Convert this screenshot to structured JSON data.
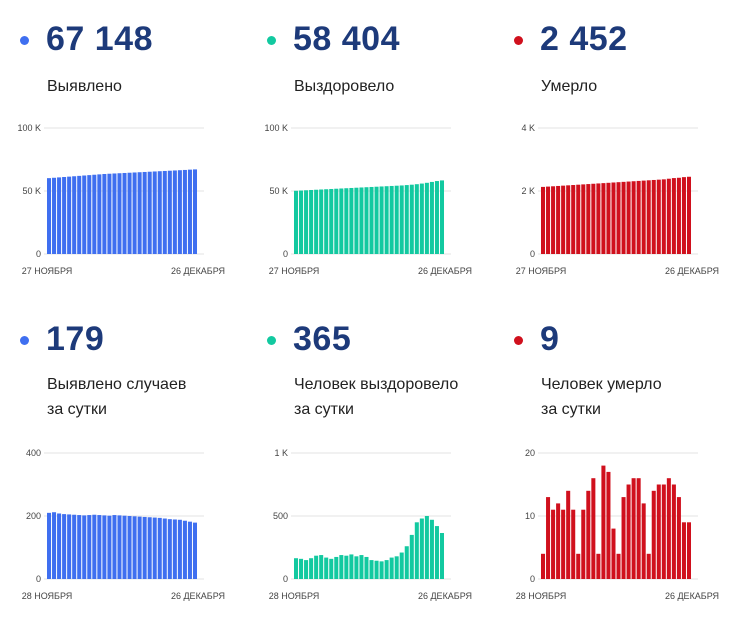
{
  "colors": {
    "blue": "#3f6ff0",
    "green": "#12c9a0",
    "red": "#d0101d",
    "number": "#1d3a7a"
  },
  "panels": [
    {
      "number": "67 148",
      "label1": "Выявлено",
      "label2": "",
      "color": "#3f6ff0"
    },
    {
      "number": "58 404",
      "label1": "Выздоровело",
      "label2": "",
      "color": "#12c9a0"
    },
    {
      "number": "2 452",
      "label1": "Умерло",
      "label2": "",
      "color": "#d0101d"
    },
    {
      "number": "179",
      "label1": "Выявлено случаев",
      "label2": "за сутки",
      "color": "#3f6ff0"
    },
    {
      "number": "365",
      "label1": "Человек выздоровело",
      "label2": "за сутки",
      "color": "#12c9a0"
    },
    {
      "number": "9",
      "label1": "Человек умерло",
      "label2": "за сутки",
      "color": "#d0101d"
    }
  ],
  "chart_data": [
    {
      "type": "bar",
      "color": "#3f6ff0",
      "ylim": [
        0,
        100000
      ],
      "yticks": [
        {
          "v": 0,
          "label": "0"
        },
        {
          "v": 50000,
          "label": "50 K"
        },
        {
          "v": 100000,
          "label": "100 K"
        }
      ],
      "x_start_label": "27 НОЯБРЯ",
      "x_end_label": "26 ДЕКАБРЯ",
      "values": [
        60200,
        60500,
        60800,
        61100,
        61400,
        61700,
        62000,
        62300,
        62600,
        62900,
        63200,
        63500,
        63700,
        63900,
        64100,
        64300,
        64500,
        64700,
        64900,
        65100,
        65300,
        65500,
        65700,
        65900,
        66100,
        66300,
        66500,
        66700,
        66950,
        67148
      ]
    },
    {
      "type": "bar",
      "color": "#12c9a0",
      "ylim": [
        0,
        100000
      ],
      "yticks": [
        {
          "v": 0,
          "label": "0"
        },
        {
          "v": 50000,
          "label": "50 K"
        },
        {
          "v": 100000,
          "label": "100 K"
        }
      ],
      "x_start_label": "27 НОЯБРЯ",
      "x_end_label": "26 ДЕКАБРЯ",
      "values": [
        50200,
        50400,
        50600,
        50800,
        51000,
        51200,
        51400,
        51600,
        51800,
        52000,
        52200,
        52400,
        52600,
        52800,
        53000,
        53200,
        53400,
        53600,
        53800,
        54000,
        54200,
        54400,
        54700,
        55000,
        55400,
        55900,
        56500,
        57200,
        57900,
        58404
      ]
    },
    {
      "type": "bar",
      "color": "#d0101d",
      "ylim": [
        0,
        4000
      ],
      "yticks": [
        {
          "v": 0,
          "label": "0"
        },
        {
          "v": 2000,
          "label": "2 K"
        },
        {
          "v": 4000,
          "label": "4 K"
        }
      ],
      "x_start_label": "27 НОЯБРЯ",
      "x_end_label": "26 ДЕКАБРЯ",
      "values": [
        2130,
        2140,
        2150,
        2160,
        2170,
        2180,
        2190,
        2200,
        2210,
        2220,
        2230,
        2240,
        2250,
        2260,
        2270,
        2280,
        2290,
        2300,
        2310,
        2320,
        2330,
        2340,
        2350,
        2360,
        2370,
        2390,
        2410,
        2420,
        2440,
        2452
      ]
    },
    {
      "type": "bar",
      "color": "#3f6ff0",
      "ylim": [
        0,
        400
      ],
      "yticks": [
        {
          "v": 0,
          "label": "0"
        },
        {
          "v": 200,
          "label": "200"
        },
        {
          "v": 400,
          "label": "400"
        }
      ],
      "x_start_label": "28 НОЯБРЯ",
      "x_end_label": "26 ДЕКАБРЯ",
      "values": [
        210,
        212,
        208,
        206,
        205,
        204,
        203,
        202,
        203,
        204,
        203,
        202,
        201,
        203,
        202,
        201,
        200,
        199,
        198,
        197,
        196,
        195,
        194,
        192,
        190,
        189,
        188,
        185,
        182,
        179
      ]
    },
    {
      "type": "bar",
      "color": "#12c9a0",
      "ylim": [
        0,
        1000
      ],
      "yticks": [
        {
          "v": 0,
          "label": "0"
        },
        {
          "v": 500,
          "label": "500"
        },
        {
          "v": 1000,
          "label": "1 K"
        }
      ],
      "x_start_label": "28 НОЯБРЯ",
      "x_end_label": "26 ДЕКАБРЯ",
      "values": [
        165,
        160,
        150,
        165,
        185,
        190,
        170,
        160,
        175,
        190,
        185,
        195,
        180,
        190,
        175,
        150,
        145,
        140,
        150,
        170,
        180,
        210,
        260,
        350,
        450,
        480,
        500,
        470,
        420,
        365
      ]
    },
    {
      "type": "bar",
      "color": "#d0101d",
      "ylim": [
        0,
        20
      ],
      "yticks": [
        {
          "v": 0,
          "label": "0"
        },
        {
          "v": 10,
          "label": "10"
        },
        {
          "v": 20,
          "label": "20"
        }
      ],
      "x_start_label": "28 НОЯБРЯ",
      "x_end_label": "26 ДЕКАБРЯ",
      "values": [
        4,
        13,
        11,
        12,
        11,
        14,
        11,
        4,
        11,
        14,
        16,
        4,
        18,
        17,
        8,
        4,
        13,
        15,
        16,
        16,
        12,
        4,
        14,
        15,
        15,
        16,
        15,
        13,
        9,
        9
      ]
    }
  ]
}
